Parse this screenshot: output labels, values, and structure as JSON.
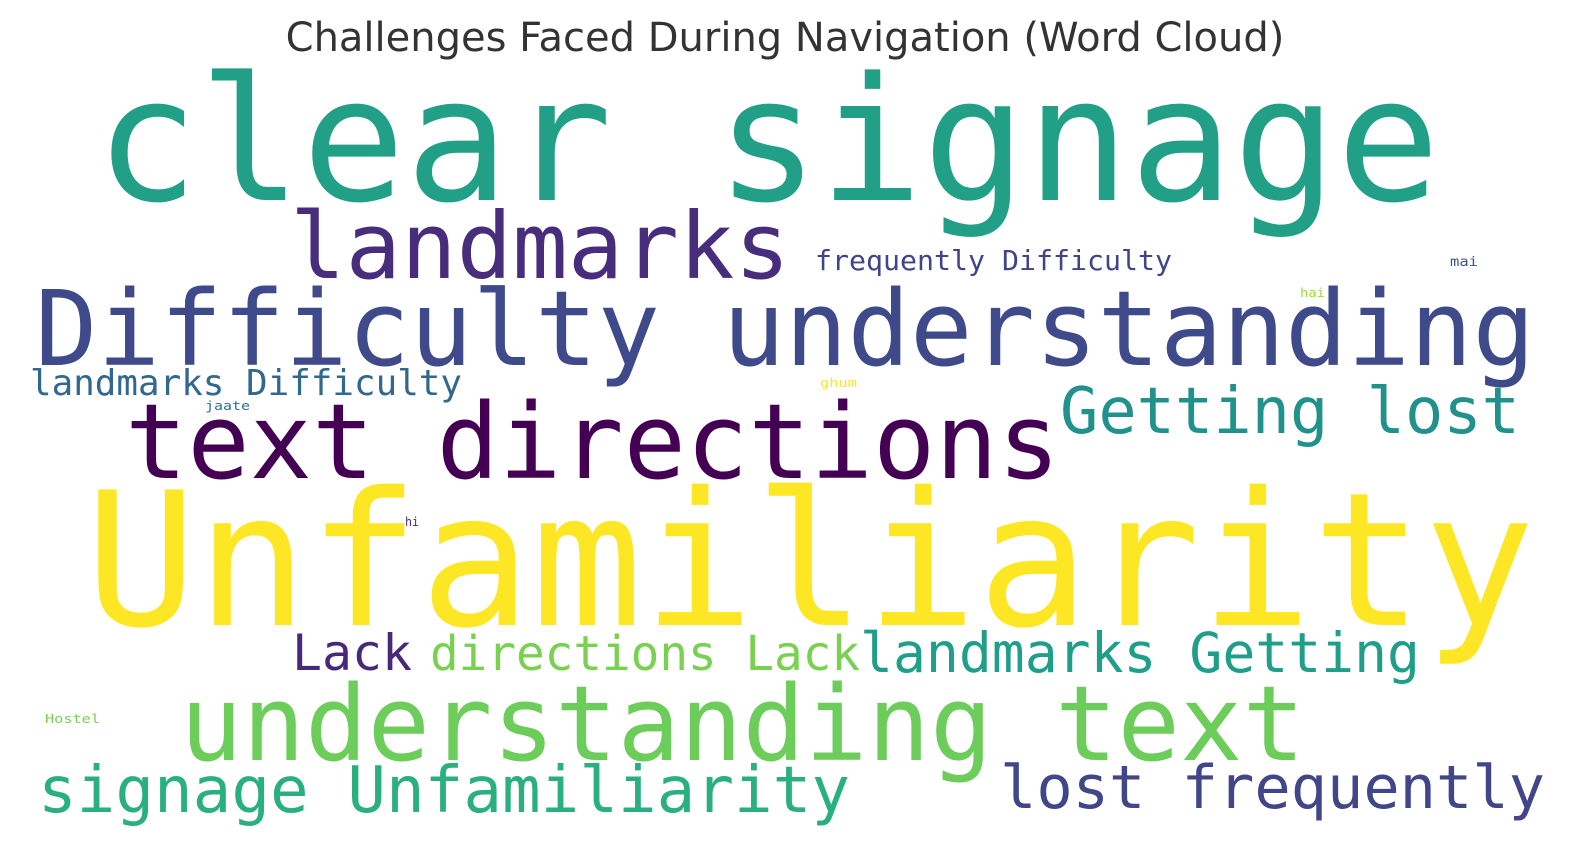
{
  "chart_data": {
    "type": "wordcloud",
    "title": "Challenges Faced During Navigation (Word Cloud)",
    "words": [
      {
        "text": "clear signage",
        "color": "#21a087"
      },
      {
        "text": "landmarks",
        "color": "#472d7b"
      },
      {
        "text": "frequently Difficulty",
        "color": "#414487"
      },
      {
        "text": "mai",
        "color": "#3b528b"
      },
      {
        "text": "hai",
        "color": "#a0da39"
      },
      {
        "text": "Difficulty understanding",
        "color": "#3e4a89"
      },
      {
        "text": "landmarks Difficulty",
        "color": "#31688e"
      },
      {
        "text": "ghum",
        "color": "#fde725"
      },
      {
        "text": "jaate",
        "color": "#2c728e"
      },
      {
        "text": "Getting lost",
        "color": "#21918c"
      },
      {
        "text": "text directions",
        "color": "#440154"
      },
      {
        "text": "Unfamiliarity",
        "color": "#fde725"
      },
      {
        "text": "hi",
        "color": "#46327e"
      },
      {
        "text": "Lack",
        "color": "#482878"
      },
      {
        "text": "directions Lack",
        "color": "#7ad151"
      },
      {
        "text": "landmarks Getting",
        "color": "#1f9e89"
      },
      {
        "text": "Hostel",
        "color": "#7ad151"
      },
      {
        "text": "understanding text",
        "color": "#6ccd5a"
      },
      {
        "text": "signage Unfamiliarity",
        "color": "#2ab07f"
      },
      {
        "text": "lost frequently",
        "color": "#404688"
      }
    ]
  }
}
